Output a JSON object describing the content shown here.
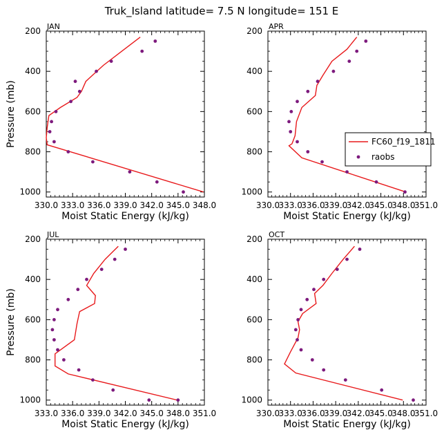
{
  "title": "Truk_Island   latitude= 7.5 N longitude= 151 E",
  "colors": {
    "model": "#e8191b",
    "obs": "#7d1a7d",
    "axis": "#000000"
  },
  "legend": {
    "model_label": "FC60_f19_1811",
    "obs_label": "raobs"
  },
  "chart_data": [
    {
      "type": "line",
      "panel_label": "JAN",
      "xlabel": "Moist Static Energy (kJ/kg)",
      "ylabel": "Pressure (mb)",
      "xlim": [
        330.0,
        348.0
      ],
      "ylim": [
        1025,
        200
      ],
      "xticks": [
        330,
        333,
        336,
        339,
        342,
        345,
        348
      ],
      "xtick_labels": [
        "330.0",
        "333.0",
        "336.0",
        "339.0",
        "342.0",
        "345.0",
        "348.0"
      ],
      "yticks": [
        200,
        400,
        600,
        800,
        1000
      ],
      "ytick_labels": [
        "200",
        "400",
        "600",
        "800",
        "1000"
      ],
      "series": [
        {
          "name": "FC60_f19_1811",
          "kind": "line",
          "x": [
            340.7,
            338.6,
            336.5,
            334.5,
            334.0,
            333.5,
            331.6,
            330.3,
            330.1,
            330.0,
            330.1,
            347.9
          ],
          "y": [
            230,
            300,
            370,
            450,
            500,
            530,
            580,
            620,
            680,
            730,
            765,
            1000
          ]
        },
        {
          "name": "raobs",
          "kind": "scatter",
          "x": [
            342.4,
            340.9,
            337.4,
            335.7,
            333.3,
            333.8,
            332.8,
            331.1,
            330.6,
            330.4,
            330.9,
            332.5,
            335.3,
            339.5,
            342.6,
            345.6
          ],
          "y": [
            250,
            300,
            350,
            400,
            450,
            500,
            550,
            600,
            650,
            700,
            750,
            800,
            850,
            900,
            950,
            1000
          ]
        }
      ]
    },
    {
      "type": "line",
      "panel_label": "APR",
      "xlabel": "Moist Static Energy (kJ/kg)",
      "ylabel": "",
      "xlim": [
        330.0,
        351.0
      ],
      "ylim": [
        1025,
        200
      ],
      "xticks": [
        330,
        333,
        336,
        339,
        342,
        345,
        348,
        351
      ],
      "xtick_labels": [
        "330.0",
        "333.0",
        "336.0",
        "339.0",
        "342.0",
        "345.0",
        "348.0",
        "351.0"
      ],
      "yticks": [
        200,
        400,
        600,
        800,
        1000
      ],
      "ytick_labels": [
        "200",
        "400",
        "600",
        "800",
        "1000"
      ],
      "series": [
        {
          "name": "FC60_f19_1811",
          "kind": "line",
          "x": [
            341.8,
            340.5,
            338.5,
            337.3,
            336.5,
            336.3,
            334.5,
            333.8,
            333.6,
            333.2,
            332.8,
            334.5,
            348.3
          ],
          "y": [
            230,
            290,
            350,
            420,
            470,
            520,
            580,
            650,
            720,
            760,
            770,
            830,
            1000
          ]
        },
        {
          "name": "raobs",
          "kind": "scatter",
          "x": [
            343.0,
            341.8,
            340.8,
            338.7,
            336.6,
            335.3,
            333.9,
            333.1,
            332.8,
            333.0,
            333.9,
            335.3,
            337.2,
            340.5,
            344.4,
            348.2
          ],
          "y": [
            250,
            300,
            350,
            400,
            450,
            500,
            550,
            600,
            650,
            700,
            750,
            800,
            850,
            900,
            950,
            1000
          ]
        }
      ]
    },
    {
      "type": "line",
      "panel_label": "JUL",
      "xlabel": "Moist Static Energy (kJ/kg)",
      "ylabel": "Pressure (mb)",
      "xlim": [
        333.0,
        351.0
      ],
      "ylim": [
        1025,
        200
      ],
      "xticks": [
        333,
        336,
        339,
        342,
        345,
        348,
        351
      ],
      "xtick_labels": [
        "333.0",
        "336.0",
        "339.0",
        "342.0",
        "345.0",
        "348.0",
        "351.0"
      ],
      "yticks": [
        200,
        400,
        600,
        800,
        1000
      ],
      "ytick_labels": [
        "200",
        "400",
        "600",
        "800",
        "1000"
      ],
      "series": [
        {
          "name": "FC60_f19_1811",
          "kind": "line",
          "x": [
            341.2,
            339.7,
            338.4,
            337.6,
            338.6,
            338.5,
            336.8,
            336.5,
            336.2,
            334.0,
            334.0,
            335.5,
            347.9
          ],
          "y": [
            235,
            300,
            370,
            430,
            480,
            520,
            560,
            620,
            700,
            770,
            830,
            870,
            1000
          ]
        },
        {
          "name": "raobs",
          "kind": "scatter",
          "x": [
            342.0,
            340.8,
            339.3,
            337.6,
            336.6,
            335.5,
            334.3,
            333.9,
            333.7,
            333.9,
            334.3,
            335.0,
            336.7,
            338.3,
            340.6,
            344.7,
            348.0
          ],
          "y": [
            250,
            300,
            350,
            400,
            450,
            500,
            550,
            600,
            650,
            700,
            750,
            800,
            850,
            900,
            950,
            1000,
            1000
          ]
        }
      ]
    },
    {
      "type": "line",
      "panel_label": "OCT",
      "xlabel": "Moist Static Energy (kJ/kg)",
      "ylabel": "",
      "xlim": [
        330.0,
        351.0
      ],
      "ylim": [
        1025,
        200
      ],
      "xticks": [
        330,
        333,
        336,
        339,
        342,
        345,
        348,
        351
      ],
      "xtick_labels": [
        "330.0",
        "333.0",
        "336.0",
        "339.0",
        "342.0",
        "345.0",
        "348.0",
        "351.0"
      ],
      "yticks": [
        200,
        400,
        600,
        800,
        1000
      ],
      "ytick_labels": [
        "200",
        "400",
        "600",
        "800",
        "1000"
      ],
      "series": [
        {
          "name": "FC60_f19_1811",
          "kind": "line",
          "x": [
            341.5,
            340.0,
            338.5,
            337.3,
            336.2,
            336.4,
            334.6,
            334.0,
            334.2,
            334.0,
            333.0,
            332.2,
            333.7,
            347.9
          ],
          "y": [
            235,
            300,
            370,
            430,
            470,
            520,
            570,
            610,
            650,
            690,
            760,
            820,
            865,
            1000
          ]
        },
        {
          "name": "raobs",
          "kind": "scatter",
          "x": [
            342.2,
            340.5,
            339.2,
            337.4,
            336.1,
            335.2,
            334.4,
            334.0,
            333.7,
            333.9,
            334.4,
            335.9,
            337.4,
            340.3,
            345.1,
            349.3
          ],
          "y": [
            250,
            300,
            350,
            400,
            450,
            500,
            550,
            600,
            650,
            700,
            750,
            800,
            850,
            900,
            950,
            1000
          ]
        }
      ]
    }
  ]
}
